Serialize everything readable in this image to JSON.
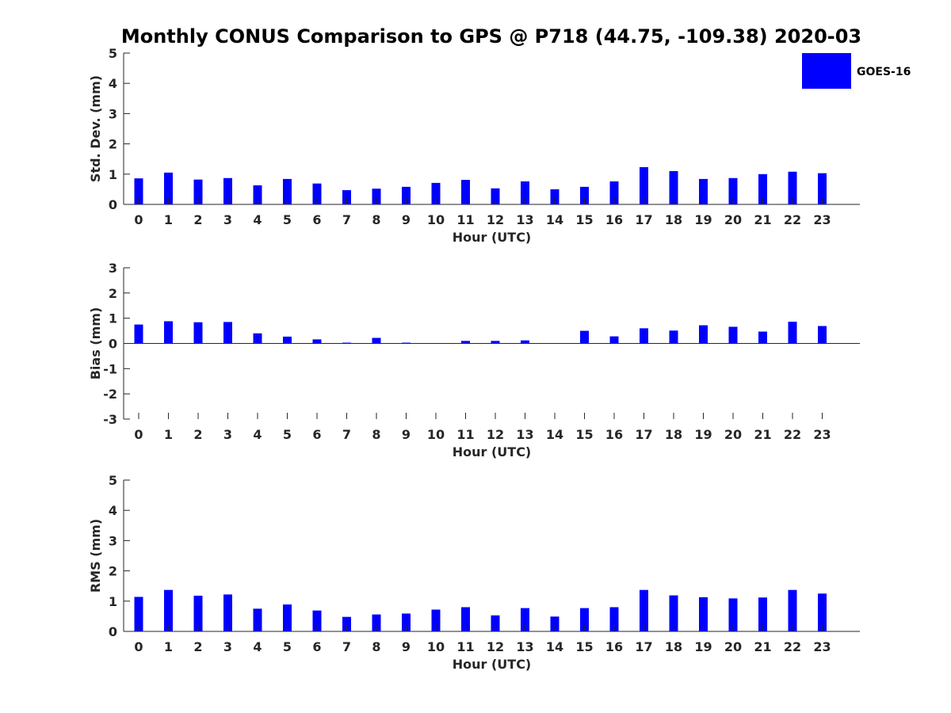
{
  "chart_data": {
    "type": "bar",
    "title": "Monthly CONUS Comparison to GPS @ P718 (44.75, -109.38) 2020-03",
    "legend": {
      "label": "GOES-16",
      "color": "#0000ff",
      "placement": "top-right"
    },
    "bar_color": "#0000ff",
    "categories": [
      "0",
      "1",
      "2",
      "3",
      "4",
      "5",
      "6",
      "7",
      "8",
      "9",
      "10",
      "11",
      "12",
      "13",
      "14",
      "15",
      "16",
      "17",
      "18",
      "19",
      "20",
      "21",
      "22",
      "23"
    ],
    "panels": [
      {
        "id": "std",
        "ylabel": "Std. Dev. (mm)",
        "xlabel": "Hour (UTC)",
        "ylim": [
          0,
          5
        ],
        "yticks": [
          0,
          1,
          2,
          3,
          4,
          5
        ],
        "values": [
          0.86,
          1.05,
          0.82,
          0.87,
          0.63,
          0.84,
          0.69,
          0.47,
          0.52,
          0.58,
          0.71,
          0.81,
          0.53,
          0.76,
          0.5,
          0.58,
          0.76,
          1.23,
          1.1,
          0.84,
          0.87,
          1.0,
          1.08,
          1.03
        ]
      },
      {
        "id": "bias",
        "ylabel": "Bias (mm)",
        "xlabel": "Hour (UTC)",
        "ylim": [
          -3,
          3
        ],
        "yticks": [
          -3,
          -2,
          -1,
          0,
          1,
          2,
          3
        ],
        "values": [
          0.75,
          0.88,
          0.84,
          0.85,
          0.4,
          0.27,
          0.16,
          0.03,
          0.22,
          0.03,
          0.0,
          0.1,
          0.1,
          0.12,
          0.0,
          0.5,
          0.28,
          0.6,
          0.51,
          0.72,
          0.66,
          0.47,
          0.86,
          0.69
        ]
      },
      {
        "id": "rms",
        "ylabel": "RMS (mm)",
        "xlabel": "Hour (UTC)",
        "ylim": [
          0,
          5
        ],
        "yticks": [
          0,
          1,
          2,
          3,
          4,
          5
        ],
        "values": [
          1.14,
          1.37,
          1.18,
          1.22,
          0.75,
          0.89,
          0.69,
          0.48,
          0.56,
          0.59,
          0.72,
          0.8,
          0.53,
          0.77,
          0.49,
          0.77,
          0.8,
          1.37,
          1.19,
          1.13,
          1.09,
          1.12,
          1.37,
          1.25
        ]
      }
    ]
  }
}
